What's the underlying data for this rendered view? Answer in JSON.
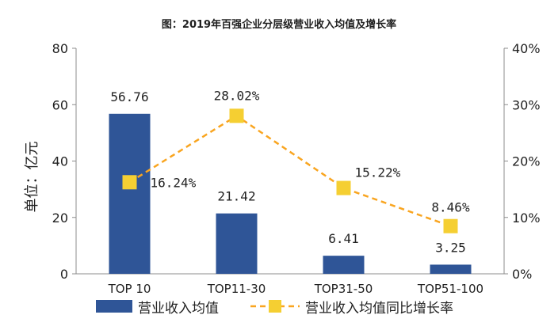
{
  "chart_data": {
    "type": "bar",
    "title": "图：2019年百强企业分层级营业收入均值及增长率",
    "ylabel": "单位：亿元",
    "categories": [
      "TOP 10",
      "TOP11-30",
      "TOP31-50",
      "TOP51-100"
    ],
    "ylim": [
      0,
      80
    ],
    "y_ticks": [
      "0",
      "20",
      "40",
      "60",
      "80"
    ],
    "y2lim": [
      0,
      40
    ],
    "y2_ticks": [
      "0%",
      "10%",
      "20%",
      "30%",
      "40%"
    ],
    "grid": false,
    "legend_placement": "bottom",
    "series": [
      {
        "name": "营业收入均值",
        "type": "bar",
        "axis": "left",
        "color": "#2F5597",
        "values": [
          56.76,
          21.42,
          6.41,
          3.25
        ],
        "labels": [
          "56.76",
          "21.42",
          "6.41",
          "3.25"
        ]
      },
      {
        "name": "营业收入均值同比增长率",
        "type": "line",
        "axis": "right",
        "color": "#F9A520",
        "marker_color": "#F5CF32",
        "line_style": "dashed",
        "values": [
          16.24,
          28.02,
          15.22,
          8.46
        ],
        "labels": [
          "16.24%",
          "28.02%",
          "15.22%",
          "8.46%"
        ]
      }
    ]
  }
}
